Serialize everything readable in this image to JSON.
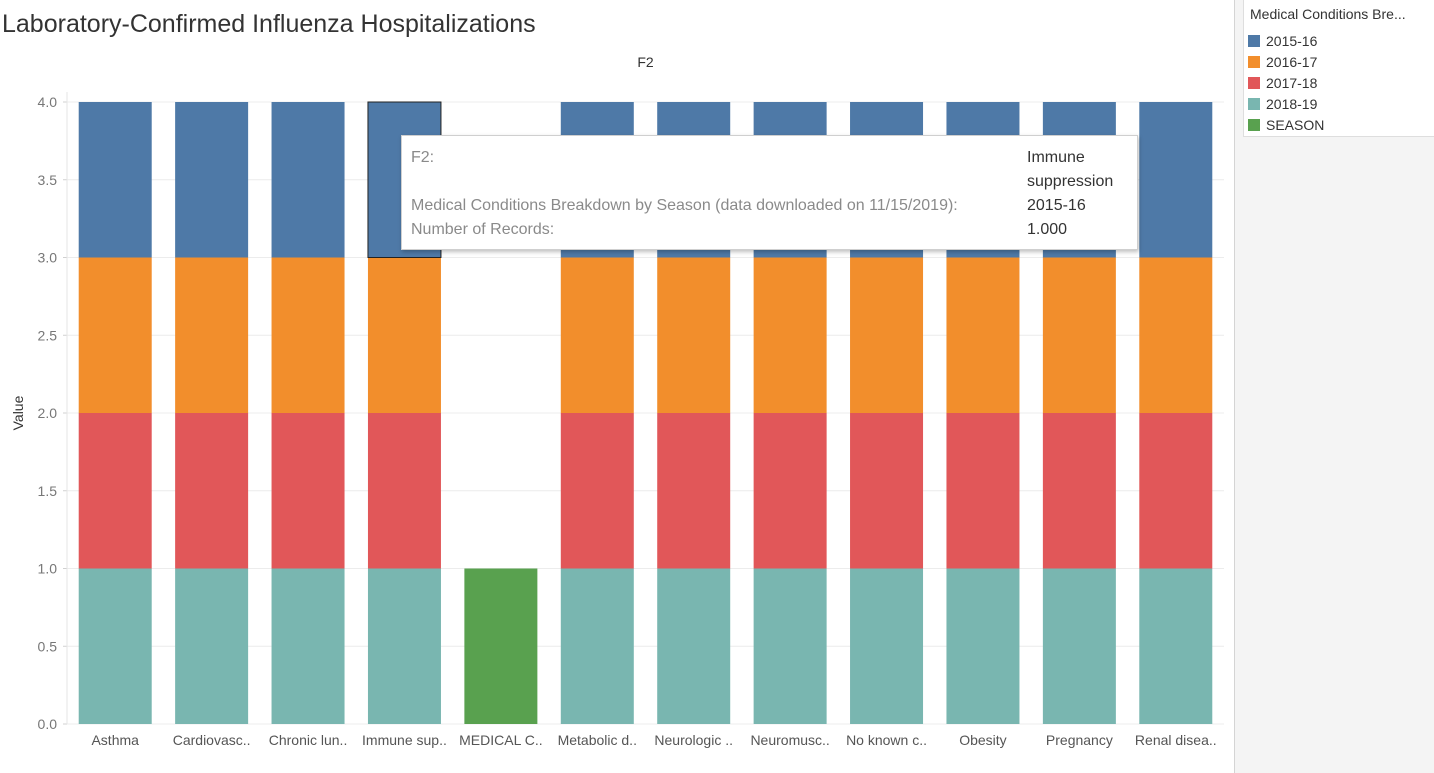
{
  "title": "Laboratory-Confirmed Influenza Hospitalizations",
  "chart_data": {
    "type": "bar",
    "stacked": true,
    "column_header": "F2",
    "ylabel": "Value",
    "ylim": [
      0,
      4
    ],
    "yticks": [
      "0.0",
      "0.5",
      "1.0",
      "1.5",
      "2.0",
      "2.5",
      "3.0",
      "3.5",
      "4.0"
    ],
    "grid": true,
    "legend_position": "right",
    "categories": [
      "Asthma",
      "Cardiovasc..",
      "Chronic lun..",
      "Immune sup..",
      "MEDICAL C..",
      "Metabolic d..",
      "Neurologic ..",
      "Neuromusc..",
      "No known c..",
      "Obesity",
      "Pregnancy",
      "Renal disea.."
    ],
    "series": [
      {
        "name": "2018-19",
        "color": "#79b6b0",
        "values": [
          1,
          1,
          1,
          1,
          0,
          1,
          1,
          1,
          1,
          1,
          1,
          1
        ]
      },
      {
        "name": "2017-18",
        "color": "#e15759",
        "values": [
          1,
          1,
          1,
          1,
          0,
          1,
          1,
          1,
          1,
          1,
          1,
          1
        ]
      },
      {
        "name": "2016-17",
        "color": "#f28e2c",
        "values": [
          1,
          1,
          1,
          1,
          0,
          1,
          1,
          1,
          1,
          1,
          1,
          1
        ]
      },
      {
        "name": "2015-16",
        "color": "#4e79a7",
        "values": [
          1,
          1,
          1,
          1,
          0,
          1,
          1,
          1,
          1,
          1,
          1,
          1
        ]
      },
      {
        "name": "SEASON",
        "color": "#59a14f",
        "values": [
          0,
          0,
          0,
          0,
          1,
          0,
          0,
          0,
          0,
          0,
          0,
          0
        ]
      }
    ],
    "highlighted": {
      "category": "Immune sup..",
      "series": "2015-16"
    }
  },
  "legend": {
    "title": "Medical Conditions Bre...",
    "items": [
      {
        "label": "2015-16",
        "color": "#4e79a7"
      },
      {
        "label": "2016-17",
        "color": "#f28e2c"
      },
      {
        "label": "2017-18",
        "color": "#e15759"
      },
      {
        "label": "2018-19",
        "color": "#79b6b0"
      },
      {
        "label": "SEASON",
        "color": "#59a14f"
      }
    ]
  },
  "tooltip": {
    "rows": [
      {
        "key": "F2:",
        "value": "Immune suppression"
      },
      {
        "key": "Medical Conditions Breakdown by Season (data downloaded on 11/15/2019):",
        "value": "2015-16"
      },
      {
        "key": "Number of Records:",
        "value": "1.000"
      }
    ]
  }
}
